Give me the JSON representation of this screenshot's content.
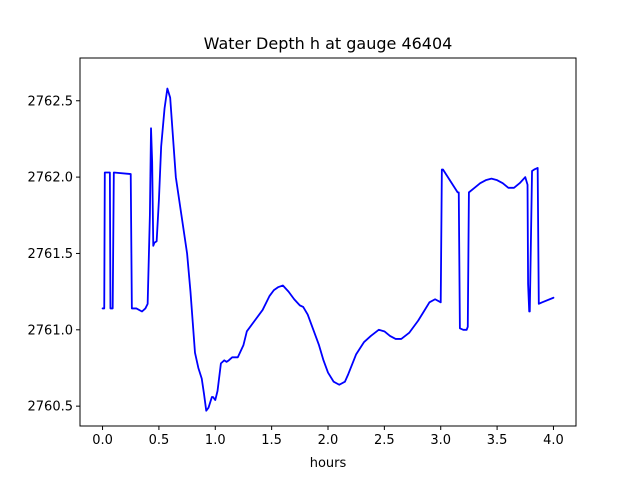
{
  "chart_data": {
    "type": "line",
    "title": "Water Depth h at gauge 46404",
    "xlabel": "hours",
    "ylabel": "",
    "xlim": [
      -0.2,
      4.2
    ],
    "ylim": [
      2760.37,
      2762.78
    ],
    "grid": false,
    "xticks": [
      0.0,
      0.5,
      1.0,
      1.5,
      2.0,
      2.5,
      3.0,
      3.5,
      4.0
    ],
    "xtick_labels": [
      "0.0",
      "0.5",
      "1.0",
      "1.5",
      "2.0",
      "2.5",
      "3.0",
      "3.5",
      "4.0"
    ],
    "yticks": [
      2760.5,
      2761.0,
      2761.5,
      2762.0,
      2762.5
    ],
    "ytick_labels": [
      "2760.5",
      "2761.0",
      "2761.5",
      "2762.0",
      "2762.5"
    ],
    "series": [
      {
        "color": "#0000ff",
        "x": [
          0.0,
          0.015,
          0.02,
          0.05,
          0.065,
          0.07,
          0.09,
          0.1,
          0.25,
          0.26,
          0.3,
          0.35,
          0.38,
          0.4,
          0.42,
          0.43,
          0.44,
          0.45,
          0.46,
          0.48,
          0.5,
          0.52,
          0.55,
          0.575,
          0.6,
          0.65,
          0.7,
          0.75,
          0.78,
          0.8,
          0.82,
          0.85,
          0.88,
          0.9,
          0.92,
          0.94,
          0.97,
          0.98,
          1.0,
          1.02,
          1.05,
          1.08,
          1.1,
          1.12,
          1.15,
          1.2,
          1.25,
          1.28,
          1.35,
          1.42,
          1.48,
          1.52,
          1.56,
          1.6,
          1.65,
          1.7,
          1.75,
          1.78,
          1.82,
          1.87,
          1.92,
          1.96,
          2.0,
          2.05,
          2.1,
          2.15,
          2.18,
          2.25,
          2.32,
          2.38,
          2.45,
          2.5,
          2.55,
          2.6,
          2.65,
          2.72,
          2.8,
          2.85,
          2.9,
          2.95,
          3.0,
          3.01,
          3.02,
          3.15,
          3.16,
          3.17,
          3.2,
          3.23,
          3.24,
          3.25,
          3.3,
          3.35,
          3.4,
          3.45,
          3.5,
          3.55,
          3.6,
          3.65,
          3.7,
          3.75,
          3.77,
          3.775,
          3.785,
          3.79,
          3.81,
          3.83,
          3.86,
          3.865,
          3.87,
          3.9,
          4.0
        ],
        "y": [
          2761.14,
          2761.14,
          2762.03,
          2762.03,
          2762.03,
          2761.14,
          2761.14,
          2762.03,
          2762.02,
          2761.14,
          2761.14,
          2761.12,
          2761.14,
          2761.17,
          2761.75,
          2762.32,
          2762.1,
          2761.55,
          2761.57,
          2761.58,
          2761.85,
          2762.2,
          2762.45,
          2762.58,
          2762.52,
          2762.0,
          2761.75,
          2761.5,
          2761.25,
          2761.05,
          2760.85,
          2760.75,
          2760.68,
          2760.58,
          2760.47,
          2760.49,
          2760.56,
          2760.56,
          2760.54,
          2760.6,
          2760.78,
          2760.8,
          2760.79,
          2760.8,
          2760.82,
          2760.82,
          2760.9,
          2760.99,
          2761.06,
          2761.13,
          2761.22,
          2761.26,
          2761.28,
          2761.29,
          2761.25,
          2761.2,
          2761.16,
          2761.15,
          2761.1,
          2761.0,
          2760.9,
          2760.8,
          2760.72,
          2760.66,
          2760.64,
          2760.66,
          2760.71,
          2760.84,
          2760.92,
          2760.96,
          2761.0,
          2760.99,
          2760.96,
          2760.94,
          2760.94,
          2760.98,
          2761.06,
          2761.12,
          2761.18,
          2761.2,
          2761.18,
          2762.05,
          2762.05,
          2761.9,
          2761.9,
          2761.01,
          2761.0,
          2761.0,
          2761.02,
          2761.9,
          2761.93,
          2761.96,
          2761.98,
          2761.99,
          2761.98,
          2761.96,
          2761.93,
          2761.93,
          2761.96,
          2762.0,
          2761.95,
          2761.3,
          2761.12,
          2761.12,
          2762.04,
          2762.05,
          2762.06,
          2761.6,
          2761.17,
          2761.18,
          2761.21
        ]
      }
    ]
  }
}
